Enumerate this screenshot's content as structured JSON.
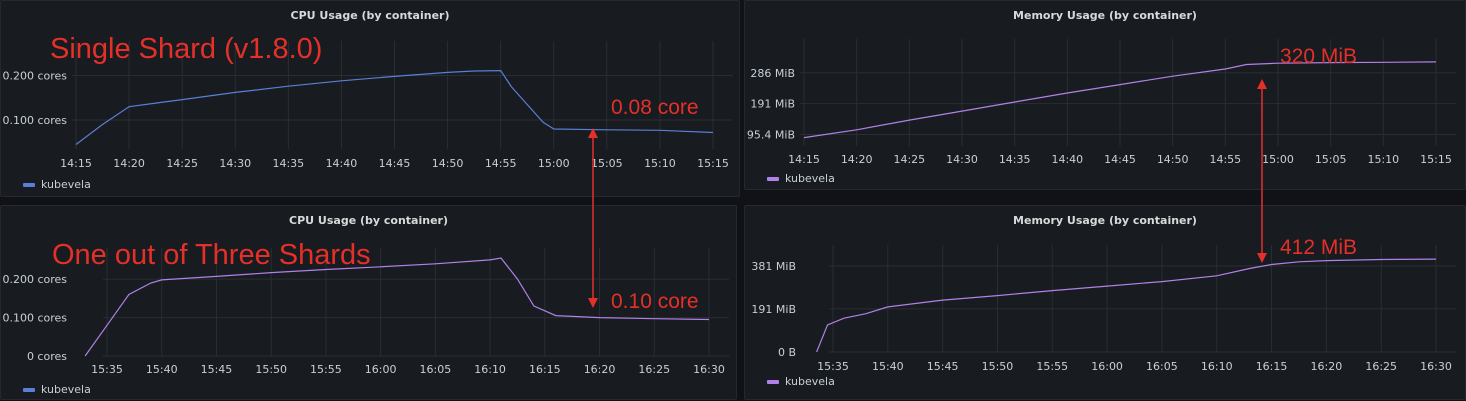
{
  "annotations": {
    "single_shard": "Single Shard (v1.8.0)",
    "one_of_three": "One out of Three Shards",
    "cpu_single": "0.08 core",
    "cpu_sharded": "0.10 core",
    "mem_single": "320 MiB",
    "mem_sharded": "412 MiB"
  },
  "colors": {
    "cpu_series": "#5a7fd6",
    "mem_series": "#b082e8",
    "annotation": "#e5302a"
  },
  "chart_data": [
    {
      "id": "cpu1",
      "type": "line",
      "title": "CPU Usage (by container)",
      "x_ticks": [
        "14:15",
        "14:20",
        "14:25",
        "14:30",
        "14:35",
        "14:40",
        "14:45",
        "14:50",
        "14:55",
        "15:00",
        "15:05",
        "15:10",
        "15:15"
      ],
      "y_ticks": [
        {
          "value": 0.1,
          "label": "0.100 cores"
        },
        {
          "value": 0.2,
          "label": "0.200 cores"
        }
      ],
      "ylim": [
        0.035,
        0.255
      ],
      "x": [
        0,
        1,
        2,
        3,
        4,
        5,
        6,
        7,
        8,
        9,
        10,
        11,
        12
      ],
      "series": [
        {
          "name": "kubevela",
          "color": "#5a7fd6",
          "values": [
            [
              0,
              0.045
            ],
            [
              0.5,
              0.09
            ],
            [
              1,
              0.13
            ],
            [
              1.5,
              0.138
            ],
            [
              2,
              0.146
            ],
            [
              3,
              0.162
            ],
            [
              4,
              0.176
            ],
            [
              5,
              0.188
            ],
            [
              6,
              0.198
            ],
            [
              7,
              0.207
            ],
            [
              7.5,
              0.21
            ],
            [
              8.0,
              0.211
            ],
            [
              8.2,
              0.175
            ],
            [
              8.5,
              0.135
            ],
            [
              8.8,
              0.095
            ],
            [
              9,
              0.08
            ],
            [
              10,
              0.078
            ],
            [
              11,
              0.077
            ],
            [
              12,
              0.072
            ]
          ]
        }
      ],
      "legend": "bottom-left"
    },
    {
      "id": "mem1",
      "type": "line",
      "title": "Memory Usage (by container)",
      "x_ticks": [
        "14:15",
        "14:20",
        "14:25",
        "14:30",
        "14:35",
        "14:40",
        "14:45",
        "14:50",
        "14:55",
        "15:00",
        "15:05",
        "15:10",
        "15:15"
      ],
      "y_ticks": [
        {
          "value": 95.4,
          "label": "95.4 MiB"
        },
        {
          "value": 191,
          "label": "191 MiB"
        },
        {
          "value": 286,
          "label": "286 MiB"
        }
      ],
      "ylim": [
        60,
        360
      ],
      "x": [
        0,
        12
      ],
      "series": [
        {
          "name": "kubevela",
          "color": "#b082e8",
          "values": [
            [
              0,
              86
            ],
            [
              1,
              110
            ],
            [
              2,
              140
            ],
            [
              3,
              168
            ],
            [
              4,
              196
            ],
            [
              5,
              224
            ],
            [
              6,
              250
            ],
            [
              7,
              276
            ],
            [
              8,
              298
            ],
            [
              8.4,
              312
            ],
            [
              9,
              316
            ],
            [
              10,
              318
            ],
            [
              11,
              319
            ],
            [
              12,
              320
            ]
          ]
        }
      ],
      "legend": "bottom-left"
    },
    {
      "id": "cpu2",
      "type": "line",
      "title": "CPU Usage (by container)",
      "x_ticks": [
        "15:35",
        "15:40",
        "15:45",
        "15:50",
        "15:55",
        "16:00",
        "16:05",
        "16:10",
        "16:15",
        "16:20",
        "16:25",
        "16:30"
      ],
      "y_ticks": [
        {
          "value": 0,
          "label": "0 cores"
        },
        {
          "value": 0.1,
          "label": "0.100 cores"
        },
        {
          "value": 0.2,
          "label": "0.200 cores"
        }
      ],
      "ylim": [
        0,
        0.255
      ],
      "x": [
        0,
        11
      ],
      "series": [
        {
          "name": "kubevela",
          "color": "#b082e8",
          "values": [
            [
              -0.4,
              0
            ],
            [
              0,
              0.08
            ],
            [
              0.4,
              0.16
            ],
            [
              0.8,
              0.19
            ],
            [
              1,
              0.198
            ],
            [
              2,
              0.207
            ],
            [
              3,
              0.217
            ],
            [
              4,
              0.225
            ],
            [
              5,
              0.232
            ],
            [
              6,
              0.24
            ],
            [
              7,
              0.25
            ],
            [
              7.2,
              0.255
            ],
            [
              7.5,
              0.2
            ],
            [
              7.8,
              0.13
            ],
            [
              8.2,
              0.105
            ],
            [
              9,
              0.1
            ],
            [
              10,
              0.097
            ],
            [
              11,
              0.095
            ]
          ]
        }
      ],
      "legend": "bottom-left"
    },
    {
      "id": "mem2",
      "type": "line",
      "title": "Memory Usage (by container)",
      "x_ticks": [
        "15:35",
        "15:40",
        "15:45",
        "15:50",
        "15:55",
        "16:00",
        "16:05",
        "16:10",
        "16:15",
        "16:20",
        "16:25",
        "16:30"
      ],
      "y_ticks": [
        {
          "value": 0,
          "label": "0 B"
        },
        {
          "value": 191,
          "label": "191 MiB"
        },
        {
          "value": 381,
          "label": "381 MiB"
        }
      ],
      "ylim": [
        0,
        430
      ],
      "x": [
        0,
        11
      ],
      "series": [
        {
          "name": "kubevela",
          "color": "#b082e8",
          "values": [
            [
              -0.3,
              0
            ],
            [
              -0.1,
              120
            ],
            [
              0.2,
              150
            ],
            [
              0.6,
              170
            ],
            [
              1,
              200
            ],
            [
              2,
              230
            ],
            [
              3,
              250
            ],
            [
              4,
              272
            ],
            [
              5,
              292
            ],
            [
              6,
              312
            ],
            [
              7,
              338
            ],
            [
              7.6,
              370
            ],
            [
              8,
              388
            ],
            [
              8.5,
              400
            ],
            [
              9,
              405
            ],
            [
              10,
              410
            ],
            [
              11,
              412
            ]
          ]
        }
      ],
      "legend": "bottom-left"
    }
  ]
}
